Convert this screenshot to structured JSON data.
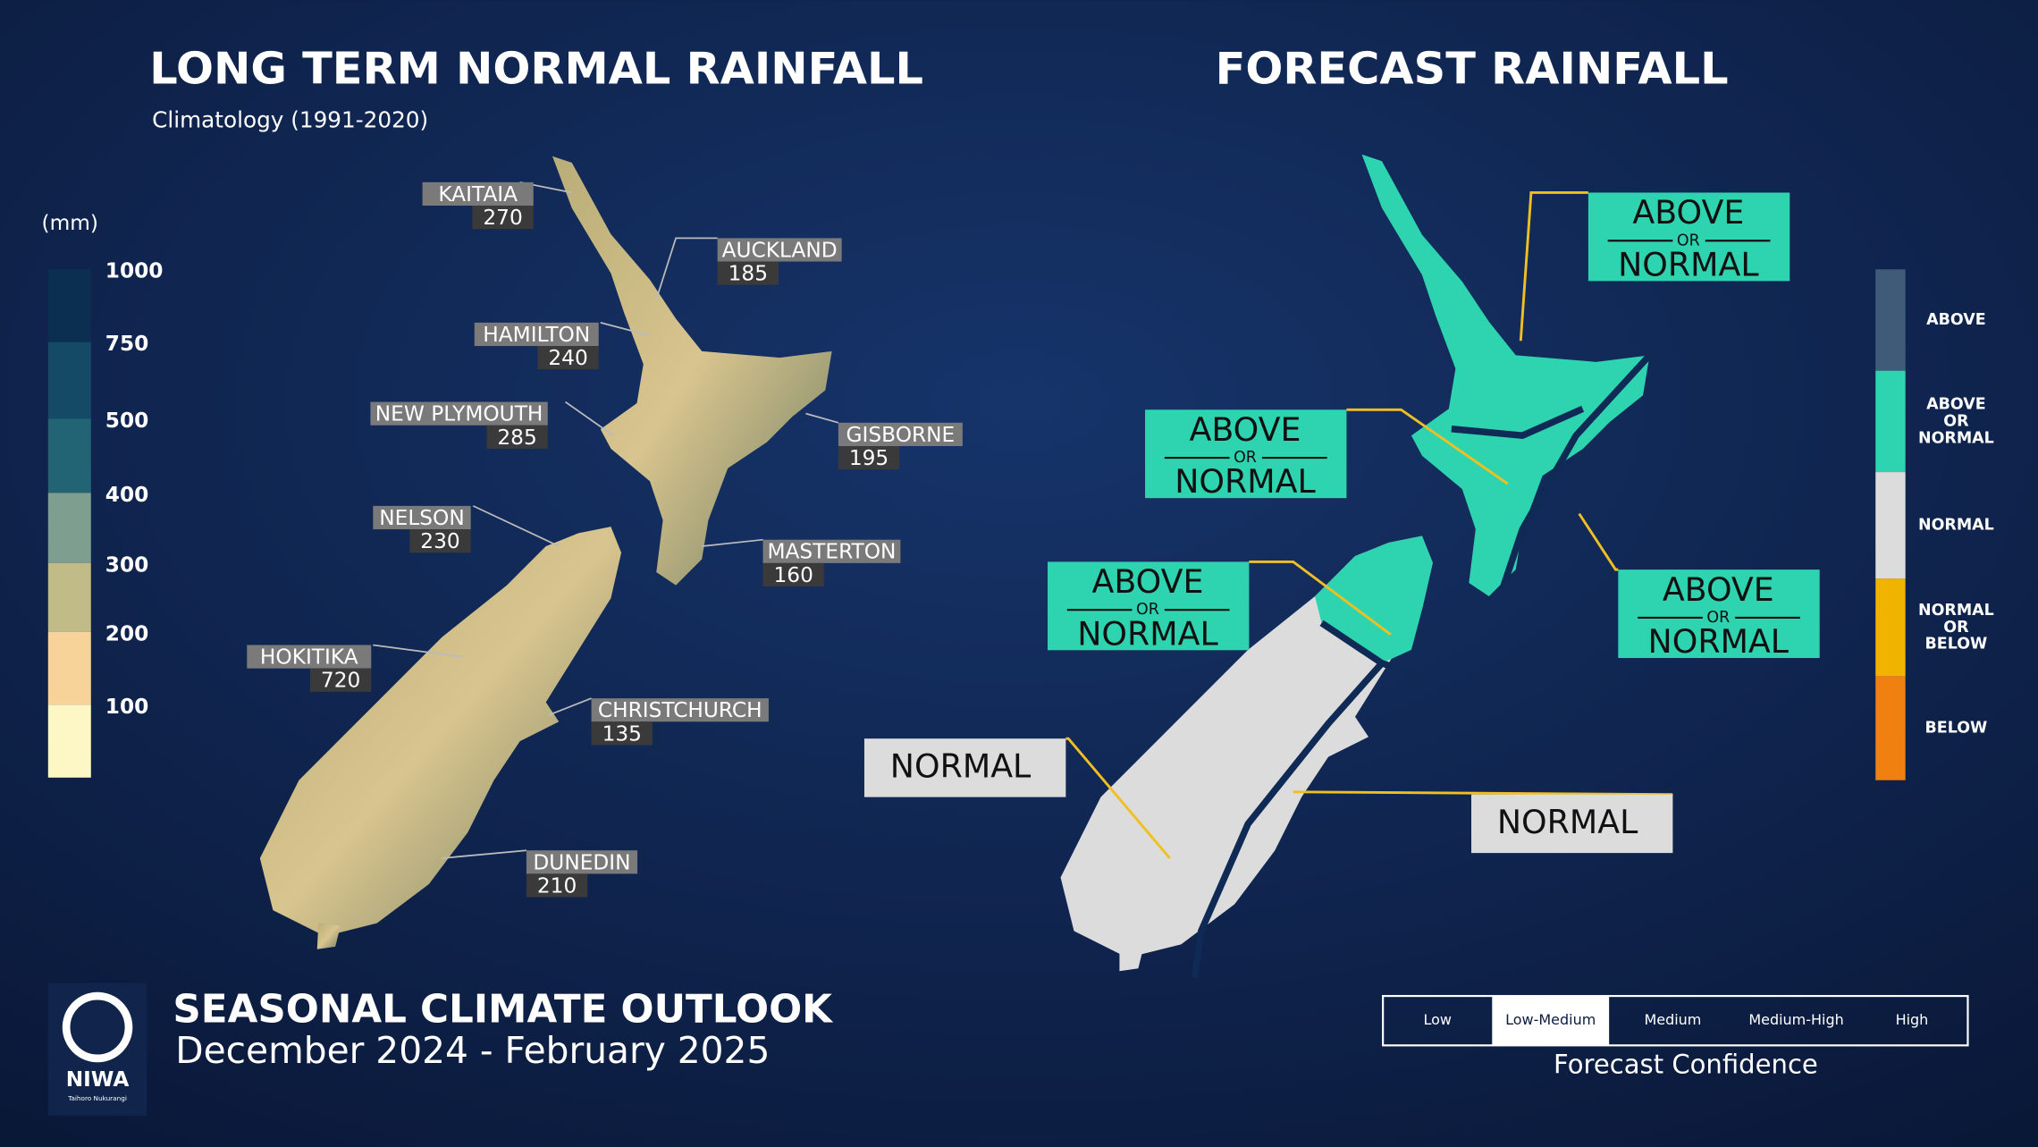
{
  "left": {
    "title": "LONG TERM NORMAL RAINFALL",
    "subtitle": "Climatology (1991-2020)",
    "unit": "(mm)",
    "scale": [
      1000,
      750,
      500,
      400,
      300,
      200,
      100
    ],
    "cities": [
      {
        "name": "KAITAIA",
        "value": 270
      },
      {
        "name": "AUCKLAND",
        "value": 185
      },
      {
        "name": "HAMILTON",
        "value": 240
      },
      {
        "name": "NEW PLYMOUTH",
        "value": 285
      },
      {
        "name": "GISBORNE",
        "value": 195
      },
      {
        "name": "NELSON",
        "value": 230
      },
      {
        "name": "MASTERTON",
        "value": 160
      },
      {
        "name": "HOKITIKA",
        "value": 720
      },
      {
        "name": "CHRISTCHURCH",
        "value": 135
      },
      {
        "name": "DUNEDIN",
        "value": 210
      }
    ]
  },
  "right": {
    "title": "FORECAST RAINFALL",
    "regions": [
      [
        "ABOVE",
        "OR",
        "NORMAL"
      ],
      [
        "ABOVE",
        "OR",
        "NORMAL"
      ],
      [
        "ABOVE",
        "OR",
        "NORMAL"
      ],
      [
        "ABOVE",
        "OR",
        "NORMAL"
      ],
      [
        "NORMAL"
      ],
      [
        "NORMAL"
      ]
    ],
    "legend": [
      {
        "lines": [
          "ABOVE"
        ],
        "color": "#3f5b78"
      },
      {
        "lines": [
          "ABOVE",
          "OR",
          "NORMAL"
        ],
        "color": "#2ed3b0"
      },
      {
        "lines": [
          "NORMAL"
        ],
        "color": "#dcdcdc"
      },
      {
        "lines": [
          "NORMAL",
          "OR",
          "BELOW"
        ],
        "color": "#f0b400"
      },
      {
        "lines": [
          "BELOW"
        ],
        "color": "#f08010"
      }
    ],
    "confidence": {
      "levels": [
        "Low",
        "Low-Medium",
        "Medium",
        "Medium-High",
        "High"
      ],
      "selected": 1,
      "title": "Forecast Confidence"
    }
  },
  "footer": {
    "title": "SEASONAL CLIMATE OUTLOOK",
    "period": "December 2024 - February 2025",
    "logo": "NIWA",
    "logo_sub": "Taihoro Nukurangi"
  }
}
